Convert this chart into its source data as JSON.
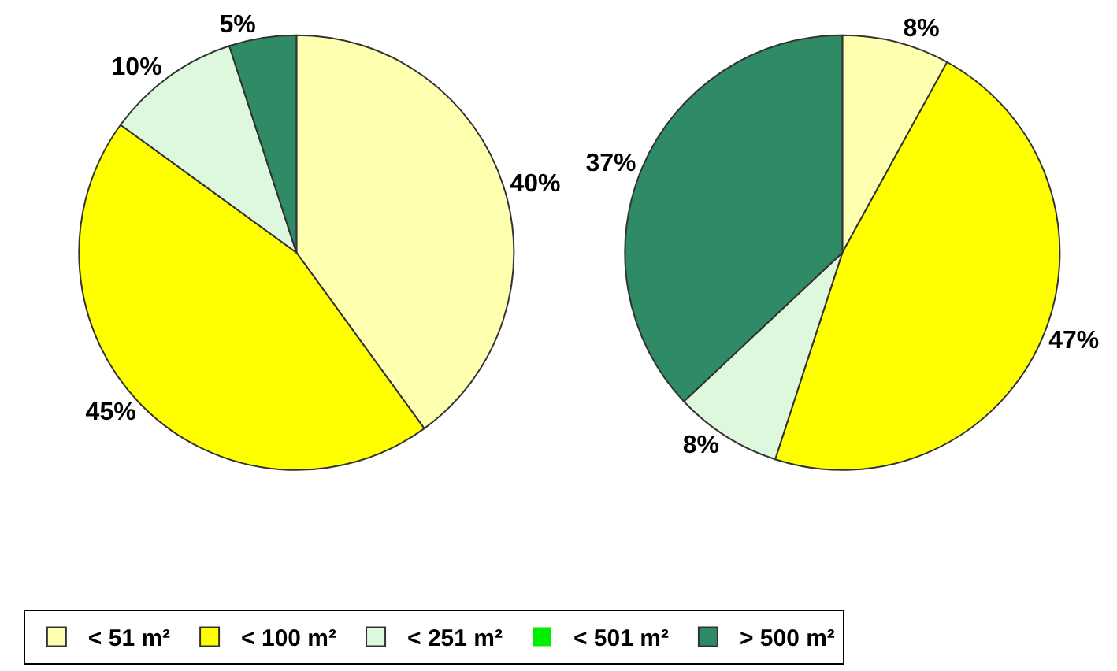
{
  "chart_data": [
    {
      "type": "pie",
      "categories": [
        "< 51 m²",
        "< 100 m²",
        "< 251 m²",
        "< 501 m²",
        "> 500 m²"
      ],
      "values": [
        40,
        45,
        10,
        0,
        5
      ],
      "value_labels": [
        "40%",
        "45%",
        "10%",
        null,
        "5%"
      ],
      "colors": [
        "#ffffb0",
        "#ffff00",
        "#ddf8dd",
        "#00ee00",
        "#2e8b66"
      ],
      "legend": "bottom"
    },
    {
      "type": "pie",
      "categories": [
        null,
        null,
        null,
        null,
        null
      ],
      "values": [
        8,
        47,
        8,
        0,
        37
      ],
      "value_labels": [
        "8%",
        "47%",
        "8%",
        null,
        "37%"
      ],
      "colors": [
        "#ffffb0",
        "#ffff00",
        "#ddf8dd",
        "#00ee00",
        "#2e8b66"
      ],
      "legend": false
    }
  ]
}
